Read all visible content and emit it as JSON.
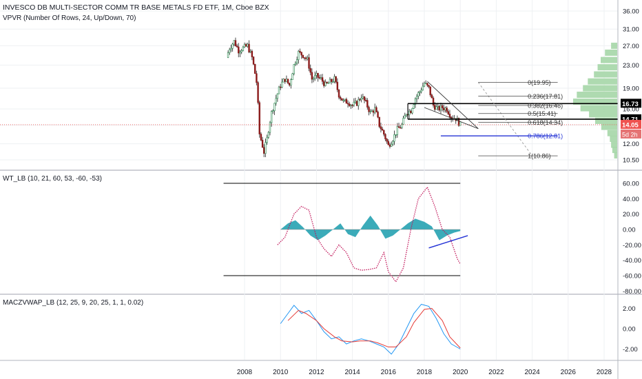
{
  "header": {
    "title": "INVESCO DB MULTI-SECTOR COMM TR BASE METALS FD ETF, 1M, Cboe BZX",
    "vpvr": "VPVR (Number Of Rows, 24, Up/Down, 70)"
  },
  "panes": {
    "wt_label": "WT_LB (10, 21, 60, 53, -60, -53)",
    "mac_label": "MACZVWAP_LB (12, 25, 9, 20, 25, 1, 1, 0.02)"
  },
  "colors": {
    "up": "#26a69a",
    "down": "#ef5350",
    "wick": "#4a4a4a",
    "vol_up": "#a5d6a7",
    "wave": "#26a2b1",
    "wt1": "#c2185b",
    "fib": "#444444",
    "blue": "#2433d6",
    "macd_blue": "#2196f3",
    "macd_red": "#e53935",
    "price_badge": "#ef5350",
    "level_badge": "#000000"
  },
  "chart_data": [
    {
      "type": "candlestick",
      "title": "INVESCO DB MULTI-SECTOR COMM TR BASE METALS FD ETF, 1M, Cboe BZX",
      "x_ticks": [
        "2008",
        "2010",
        "2012",
        "2014",
        "2016",
        "2018",
        "2020",
        "2022",
        "2024",
        "2026",
        "2028"
      ],
      "y_ticks": [
        "36.00",
        "31.00",
        "27.00",
        "23.00",
        "19.00",
        "16.00",
        "14.00",
        "12.00",
        "10.50"
      ],
      "ylim": [
        10,
        37
      ],
      "y_scale": "log",
      "close_series": [
        [
          "2007-01",
          24.5
        ],
        [
          "2007-03",
          26.5
        ],
        [
          "2007-06",
          28.0
        ],
        [
          "2007-09",
          26.0
        ],
        [
          "2007-12",
          26.5
        ],
        [
          "2008-03",
          27.0
        ],
        [
          "2008-06",
          24.5
        ],
        [
          "2008-09",
          20.0
        ],
        [
          "2008-11",
          13.0
        ],
        [
          "2009-02",
          11.2
        ],
        [
          "2009-04",
          12.5
        ],
        [
          "2009-07",
          15.5
        ],
        [
          "2009-10",
          17.5
        ],
        [
          "2010-01",
          19.5
        ],
        [
          "2010-04",
          20.5
        ],
        [
          "2010-07",
          19.5
        ],
        [
          "2010-10",
          23.0
        ],
        [
          "2011-01",
          25.5
        ],
        [
          "2011-04",
          25.0
        ],
        [
          "2011-07",
          24.0
        ],
        [
          "2011-10",
          20.5
        ],
        [
          "2012-01",
          21.0
        ],
        [
          "2012-04",
          20.5
        ],
        [
          "2012-07",
          19.5
        ],
        [
          "2012-10",
          20.0
        ],
        [
          "2013-01",
          20.5
        ],
        [
          "2013-04",
          18.0
        ],
        [
          "2013-07",
          17.0
        ],
        [
          "2013-10",
          17.0
        ],
        [
          "2014-01",
          16.5
        ],
        [
          "2014-04",
          16.8
        ],
        [
          "2014-07",
          17.8
        ],
        [
          "2014-10",
          16.8
        ],
        [
          "2015-01",
          15.5
        ],
        [
          "2015-04",
          16.0
        ],
        [
          "2015-07",
          14.0
        ],
        [
          "2015-10",
          13.0
        ],
        [
          "2016-01",
          11.8
        ],
        [
          "2016-04",
          12.5
        ],
        [
          "2016-07",
          13.5
        ],
        [
          "2016-10",
          14.0
        ],
        [
          "2017-01",
          15.5
        ],
        [
          "2017-04",
          15.8
        ],
        [
          "2017-07",
          17.5
        ],
        [
          "2017-10",
          18.5
        ],
        [
          "2018-01",
          19.8
        ],
        [
          "2018-04",
          19.0
        ],
        [
          "2018-07",
          16.5
        ],
        [
          "2018-10",
          16.0
        ],
        [
          "2019-01",
          16.2
        ],
        [
          "2019-04",
          16.0
        ],
        [
          "2019-07",
          15.0
        ],
        [
          "2019-10",
          14.8
        ],
        [
          "2020-01",
          14.05
        ]
      ],
      "price_labels": {
        "last": "14.05",
        "countdown": "5d 2h",
        "upper_level": "16.73",
        "lower_level": "14.71"
      },
      "fib_levels": [
        {
          "label": "0(19.95)",
          "value": 19.95
        },
        {
          "label": "0.236(17.81)",
          "value": 17.81
        },
        {
          "label": "0.382(16.48)",
          "value": 16.48
        },
        {
          "label": "0.5(15.41)",
          "value": 15.41
        },
        {
          "label": "0.618(14.34)",
          "value": 14.34
        },
        {
          "label": "0.786(12.81)",
          "value": 12.81
        },
        {
          "label": "1(10.86)",
          "value": 10.86
        }
      ],
      "volume_profile": [
        {
          "price": 27.0,
          "up": 10,
          "down": 0
        },
        {
          "price": 25.5,
          "up": 20,
          "down": 0
        },
        {
          "price": 24.0,
          "up": 27,
          "down": 0
        },
        {
          "price": 22.6,
          "up": 32,
          "down": 0
        },
        {
          "price": 21.3,
          "up": 38,
          "down": 0
        },
        {
          "price": 20.1,
          "up": 48,
          "down": 0
        },
        {
          "price": 19.0,
          "up": 56,
          "down": 0
        },
        {
          "price": 18.0,
          "up": 66,
          "down": 0
        },
        {
          "price": 17.0,
          "up": 72,
          "down": 0
        },
        {
          "price": 16.1,
          "up": 60,
          "down": 0
        },
        {
          "price": 15.3,
          "up": 46,
          "down": 0
        },
        {
          "price": 14.5,
          "up": 36,
          "down": 0
        },
        {
          "price": 13.8,
          "up": 26,
          "down": 0
        },
        {
          "price": 13.1,
          "up": 16,
          "down": 0
        },
        {
          "price": 12.5,
          "up": 12,
          "down": 0
        },
        {
          "price": 11.9,
          "up": 10,
          "down": 0
        },
        {
          "price": 11.4,
          "up": 8,
          "down": 0
        },
        {
          "price": 10.9,
          "up": 5,
          "down": 0
        }
      ]
    },
    {
      "type": "area",
      "title": "WT_LB (10, 21, 60, 53, -60, -53)",
      "y_ticks": [
        "60.00",
        "40.00",
        "20.00",
        "0.00",
        "-20.00",
        "-40.00",
        "-60.00",
        "-80.00"
      ],
      "ylim": [
        -82,
        72
      ],
      "bands": [
        60,
        -60
      ],
      "wt1": [
        [
          "2009-11",
          -20
        ],
        [
          "2010-04",
          -10
        ],
        [
          "2010-10",
          20
        ],
        [
          "2011-03",
          30
        ],
        [
          "2011-08",
          25
        ],
        [
          "2012-01",
          -10
        ],
        [
          "2012-06",
          -25
        ],
        [
          "2012-11",
          -35
        ],
        [
          "2013-04",
          -20
        ],
        [
          "2013-09",
          -30
        ],
        [
          "2014-02",
          -50
        ],
        [
          "2014-07",
          -53
        ],
        [
          "2014-12",
          -52
        ],
        [
          "2015-05",
          -50
        ],
        [
          "2015-10",
          -30
        ],
        [
          "2016-01",
          -55
        ],
        [
          "2016-06",
          -68
        ],
        [
          "2016-11",
          -50
        ],
        [
          "2017-04",
          0
        ],
        [
          "2017-09",
          40
        ],
        [
          "2018-03",
          55
        ],
        [
          "2018-08",
          30
        ],
        [
          "2019-01",
          0
        ],
        [
          "2019-06",
          -10
        ],
        [
          "2019-11",
          -38
        ],
        [
          "2020-01",
          -45
        ]
      ],
      "wave": [
        [
          "2010-01",
          0
        ],
        [
          "2010-06",
          8
        ],
        [
          "2010-11",
          12
        ],
        [
          "2011-04",
          3
        ],
        [
          "2011-09",
          -8
        ],
        [
          "2012-02",
          -14
        ],
        [
          "2012-07",
          -8
        ],
        [
          "2012-12",
          0
        ],
        [
          "2013-05",
          8
        ],
        [
          "2013-10",
          -6
        ],
        [
          "2014-03",
          -10
        ],
        [
          "2014-08",
          5
        ],
        [
          "2015-01",
          18
        ],
        [
          "2015-06",
          5
        ],
        [
          "2015-11",
          -12
        ],
        [
          "2016-04",
          -8
        ],
        [
          "2016-09",
          0
        ],
        [
          "2017-02",
          8
        ],
        [
          "2017-07",
          14
        ],
        [
          "2018-01",
          10
        ],
        [
          "2018-06",
          4
        ],
        [
          "2018-11",
          -14
        ],
        [
          "2019-04",
          -8
        ],
        [
          "2019-09",
          -4
        ],
        [
          "2020-01",
          -2
        ]
      ]
    },
    {
      "type": "line",
      "title": "MACZVWAP_LB (12, 25, 9, 20, 25, 1, 1, 0.02)",
      "y_ticks": [
        "2.00",
        "0.00",
        "-2.00"
      ],
      "ylim": [
        -2.8,
        3.2
      ],
      "series": [
        {
          "values": [
            [
              "2010-01",
              0.5
            ],
            [
              "2010-06",
              1.5
            ],
            [
              "2010-10",
              2.3
            ],
            [
              "2011-03",
              1.5
            ],
            [
              "2011-08",
              1.8
            ],
            [
              "2012-01",
              0.8
            ],
            [
              "2012-06",
              -0.3
            ],
            [
              "2012-11",
              -1.0
            ],
            [
              "2013-04",
              -0.8
            ],
            [
              "2013-09",
              -1.5
            ],
            [
              "2014-02",
              -1.2
            ],
            [
              "2014-07",
              -1.0
            ],
            [
              "2014-12",
              -1.2
            ],
            [
              "2015-05",
              -1.5
            ],
            [
              "2015-10",
              -1.8
            ],
            [
              "2016-03",
              -2.5
            ],
            [
              "2016-08",
              -1.5
            ],
            [
              "2017-01",
              0.0
            ],
            [
              "2017-06",
              1.5
            ],
            [
              "2017-11",
              2.4
            ],
            [
              "2018-04",
              2.2
            ],
            [
              "2018-09",
              1.0
            ],
            [
              "2019-02",
              -0.5
            ],
            [
              "2019-07",
              -1.5
            ],
            [
              "2020-01",
              -2.0
            ]
          ]
        },
        {
          "values": [
            [
              "2010-06",
              0.8
            ],
            [
              "2011-01",
              1.8
            ],
            [
              "2011-06",
              1.5
            ],
            [
              "2012-01",
              0.8
            ],
            [
              "2012-06",
              0.0
            ],
            [
              "2013-01",
              -0.8
            ],
            [
              "2013-06",
              -1.2
            ],
            [
              "2014-01",
              -1.3
            ],
            [
              "2014-06",
              -1.2
            ],
            [
              "2015-01",
              -1.2
            ],
            [
              "2015-06",
              -1.4
            ],
            [
              "2016-01",
              -1.8
            ],
            [
              "2016-06",
              -1.8
            ],
            [
              "2017-01",
              -0.8
            ],
            [
              "2017-06",
              0.6
            ],
            [
              "2018-01",
              1.9
            ],
            [
              "2018-06",
              2.0
            ],
            [
              "2019-01",
              0.8
            ],
            [
              "2019-06",
              -0.8
            ],
            [
              "2020-01",
              -1.9
            ]
          ]
        }
      ]
    }
  ]
}
